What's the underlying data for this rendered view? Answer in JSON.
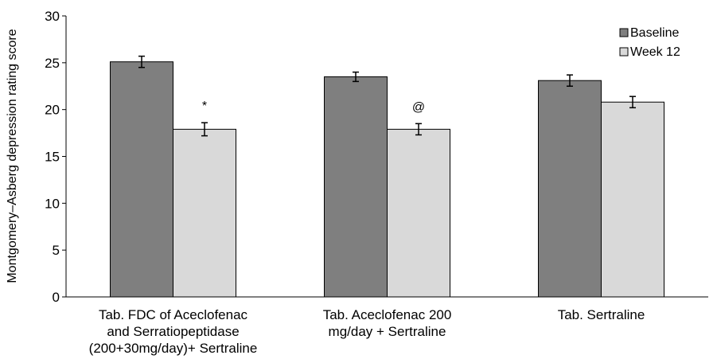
{
  "chart_data": {
    "type": "bar",
    "ylabel": "Montgomery–Asberg depression rating score",
    "xlabel": "",
    "ylim": [
      0,
      30
    ],
    "yticks": [
      0,
      5,
      10,
      15,
      20,
      25,
      30
    ],
    "grid": false,
    "legend_position": "top-right",
    "categories": [
      [
        "Tab. FDC of Aceclofenac",
        "and Serratiopeptidase",
        "(200+30mg/day)+ Sertraline"
      ],
      [
        "Tab.  Aceclofenac 200",
        "mg/day +  Sertraline"
      ],
      [
        "Tab. Sertraline"
      ]
    ],
    "series": [
      {
        "name": "Baseline",
        "color": "#7f7f7f",
        "values": [
          25.1,
          23.5,
          23.1
        ],
        "errors": [
          0.6,
          0.5,
          0.6
        ]
      },
      {
        "name": "Week 12",
        "color": "#d9d9d9",
        "values": [
          17.9,
          17.9,
          20.8
        ],
        "errors": [
          0.7,
          0.6,
          0.6
        ]
      }
    ],
    "annotations": [
      {
        "category_index": 0,
        "series_index": 1,
        "text": "*"
      },
      {
        "category_index": 1,
        "series_index": 1,
        "text": "@"
      }
    ]
  }
}
